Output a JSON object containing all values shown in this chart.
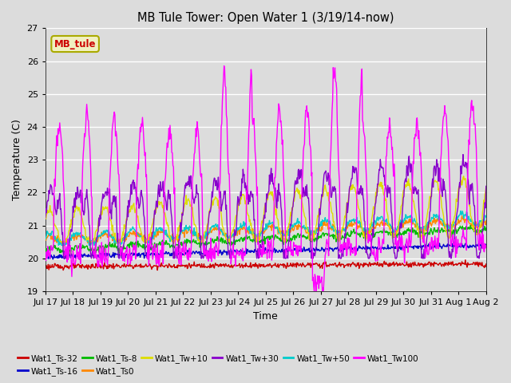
{
  "title": "MB Tule Tower: Open Water 1 (3/19/14-now)",
  "xlabel": "Time",
  "ylabel": "Temperature (C)",
  "ylim": [
    19.0,
    27.0
  ],
  "yticks": [
    19,
    20,
    21,
    22,
    23,
    24,
    25,
    26,
    27
  ],
  "legend_label": "MB_tule",
  "series": {
    "Wat1_Ts-32": {
      "color": "#cc0000",
      "lw": 1.0
    },
    "Wat1_Ts-16": {
      "color": "#0000cc",
      "lw": 1.0
    },
    "Wat1_Ts-8": {
      "color": "#00bb00",
      "lw": 1.0
    },
    "Wat1_Ts0": {
      "color": "#ff8800",
      "lw": 1.0
    },
    "Wat1_Tw+10": {
      "color": "#dddd00",
      "lw": 1.0
    },
    "Wat1_Tw+30": {
      "color": "#8800cc",
      "lw": 1.0
    },
    "Wat1_Tw+50": {
      "color": "#00cccc",
      "lw": 1.0
    },
    "Wat1_Tw100": {
      "color": "#ff00ff",
      "lw": 1.0
    }
  },
  "bg_color": "#dcdcdc",
  "n_days": 16,
  "start_day": 17,
  "pts_per_day": 48
}
